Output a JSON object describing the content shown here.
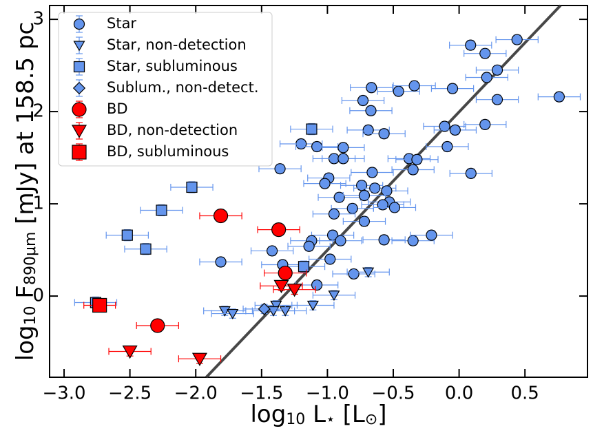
{
  "chart_data": {
    "type": "scatter",
    "x_label": [
      "log",
      "10",
      " L",
      "⋆",
      " [L",
      "⊙",
      "]"
    ],
    "y_label": [
      "log",
      "10",
      " F",
      "890μm",
      " [mJy] at 158.5 pc"
    ],
    "xlim": [
      -3.11,
      0.975
    ],
    "ylim": [
      -0.88,
      3.15
    ],
    "xticks": [
      {
        "value": -3.0,
        "label": "−3.0"
      },
      {
        "value": -2.5,
        "label": "−2.5"
      },
      {
        "value": -2.0,
        "label": "−2.0"
      },
      {
        "value": -1.5,
        "label": "−1.5"
      },
      {
        "value": -1.0,
        "label": "−1.0"
      },
      {
        "value": -0.5,
        "label": "−0.5"
      },
      {
        "value": 0.0,
        "label": "0.0"
      },
      {
        "value": 0.5,
        "label": "0.5"
      }
    ],
    "yticks": [
      0,
      1,
      2,
      3
    ],
    "legend": "upper left",
    "fit_line": {
      "color": "#333333",
      "x": [
        -1.92,
        0.77
      ],
      "values": [
        -0.88,
        3.15
      ]
    },
    "series": [
      {
        "name": "Star",
        "marker": "circle",
        "color": "#6495ed",
        "xerr": 0.16,
        "yerr": 0.05,
        "x": [
          0.087,
          0.44,
          0.197,
          0.29,
          0.21,
          0.76,
          0.29,
          -0.666,
          -0.46,
          -0.34,
          -0.05,
          -0.73,
          -0.67,
          -0.11,
          -0.03,
          0.197,
          -0.69,
          -0.57,
          -1.2,
          -1.08,
          -0.88,
          -0.09,
          -0.95,
          -0.88,
          -0.38,
          -0.32,
          -1.36,
          -0.66,
          -0.35,
          0.09,
          -0.99,
          -1.02,
          -0.74,
          -0.64,
          -0.55,
          -0.91,
          -0.72,
          -0.53,
          -0.58,
          -0.49,
          -0.81,
          -0.95,
          -0.72,
          -0.96,
          -1.12,
          -0.9,
          -0.57,
          -0.35,
          -0.21,
          -1.14,
          -1.42,
          -1.81,
          -1.34,
          -0.98,
          -0.8,
          -1.08
        ],
        "values": [
          2.72,
          2.78,
          2.63,
          2.45,
          2.37,
          2.16,
          2.13,
          2.26,
          2.22,
          2.28,
          2.25,
          2.12,
          2.01,
          1.84,
          1.8,
          1.86,
          1.8,
          1.76,
          1.65,
          1.62,
          1.61,
          1.62,
          1.49,
          1.49,
          1.49,
          1.48,
          1.38,
          1.34,
          1.37,
          1.33,
          1.28,
          1.22,
          1.2,
          1.17,
          1.14,
          1.07,
          1.09,
          1.02,
          0.99,
          0.96,
          0.95,
          0.89,
          0.81,
          0.66,
          0.6,
          0.6,
          0.61,
          0.6,
          0.66,
          0.54,
          0.49,
          0.37,
          0.34,
          0.4,
          0.24,
          0.12
        ]
      },
      {
        "name": "Star, non-detection",
        "marker": "triangle",
        "color": "#6495ed",
        "xerr": 0.16,
        "yerr": 0.05,
        "x": [
          -0.69,
          -0.95,
          -1.11,
          -1.39,
          -1.78,
          -1.72,
          -1.41,
          -1.32
        ],
        "values": [
          0.26,
          0.01,
          -0.1,
          -0.1,
          -0.16,
          -0.19,
          -0.16,
          -0.16
        ]
      },
      {
        "name": "Star, subluminous",
        "marker": "square",
        "color": "#6495ed",
        "xerr": 0.16,
        "yerr": 0.06,
        "x": [
          -1.12,
          -2.03,
          -2.26,
          -2.52,
          -2.38,
          -1.18,
          -2.76
        ],
        "values": [
          1.81,
          1.18,
          0.93,
          0.66,
          0.51,
          0.32,
          -0.07
        ]
      },
      {
        "name": "Sublum., non-detect.",
        "marker": "diamond",
        "color": "#6495ed",
        "xerr": 0.16,
        "yerr": 0.05,
        "x": [
          -1.48
        ],
        "values": [
          -0.14
        ]
      },
      {
        "name": "BD",
        "marker": "circle",
        "color": "#ff0000",
        "xerr": 0.16,
        "yerr": 0.05,
        "x": [
          -1.81,
          -1.37,
          -1.32,
          -2.29
        ],
        "values": [
          0.87,
          0.72,
          0.25,
          -0.32
        ]
      },
      {
        "name": "BD, non-detection",
        "marker": "triangle",
        "color": "#ff0000",
        "xerr": 0.16,
        "yerr": 0.05,
        "x": [
          -1.35,
          -1.25,
          -2.5,
          -1.97
        ],
        "values": [
          0.11,
          0.07,
          -0.6,
          -0.68
        ]
      },
      {
        "name": "BD, subluminous",
        "marker": "square",
        "color": "#ff0000",
        "xerr": 0.12,
        "yerr": 0.05,
        "x": [
          -2.73
        ],
        "values": [
          -0.1
        ]
      }
    ]
  }
}
